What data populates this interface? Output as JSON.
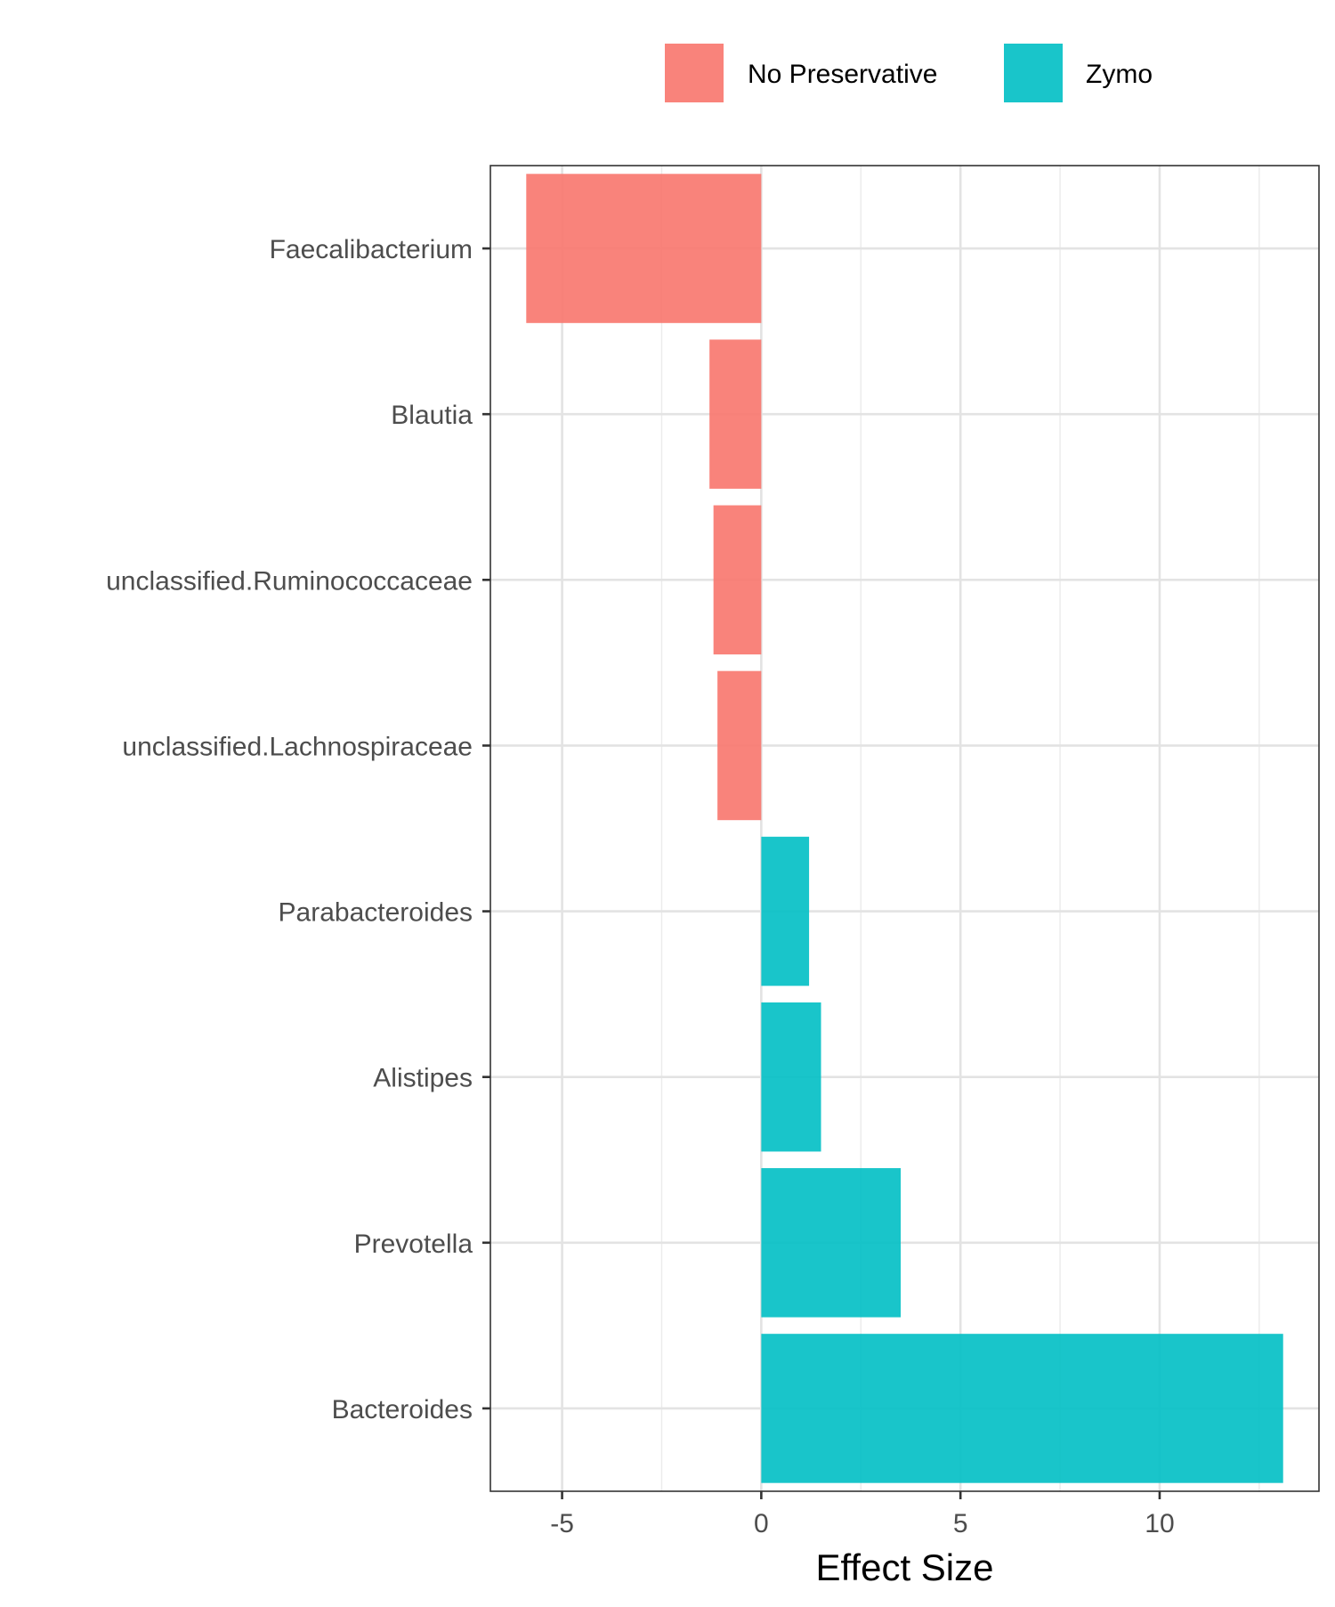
{
  "chart_data": {
    "type": "bar",
    "orientation": "horizontal",
    "categories": [
      "Faecalibacterium",
      "Blautia",
      "unclassified.Ruminococcaceae",
      "unclassified.Lachnospiraceae",
      "Parabacteroides",
      "Alistipes",
      "Prevotella",
      "Bacteroides"
    ],
    "values": [
      -5.9,
      -1.3,
      -1.2,
      -1.1,
      1.2,
      1.5,
      3.5,
      13.1
    ],
    "groups": [
      "No Preservative",
      "No Preservative",
      "No Preservative",
      "No Preservative",
      "Zymo",
      "Zymo",
      "Zymo",
      "Zymo"
    ],
    "legend": [
      {
        "name": "No Preservative",
        "color": "#F8766D"
      },
      {
        "name": "Zymo",
        "color": "#00BFC4"
      }
    ],
    "legend_position": "top",
    "xlabel": "Effect Size",
    "ylabel": "",
    "xlim": [
      -6.8,
      14
    ],
    "xticks": [
      -5,
      0,
      5,
      10
    ],
    "xtick_labels": [
      "-5",
      "0",
      "5",
      "10"
    ],
    "grid": true
  }
}
